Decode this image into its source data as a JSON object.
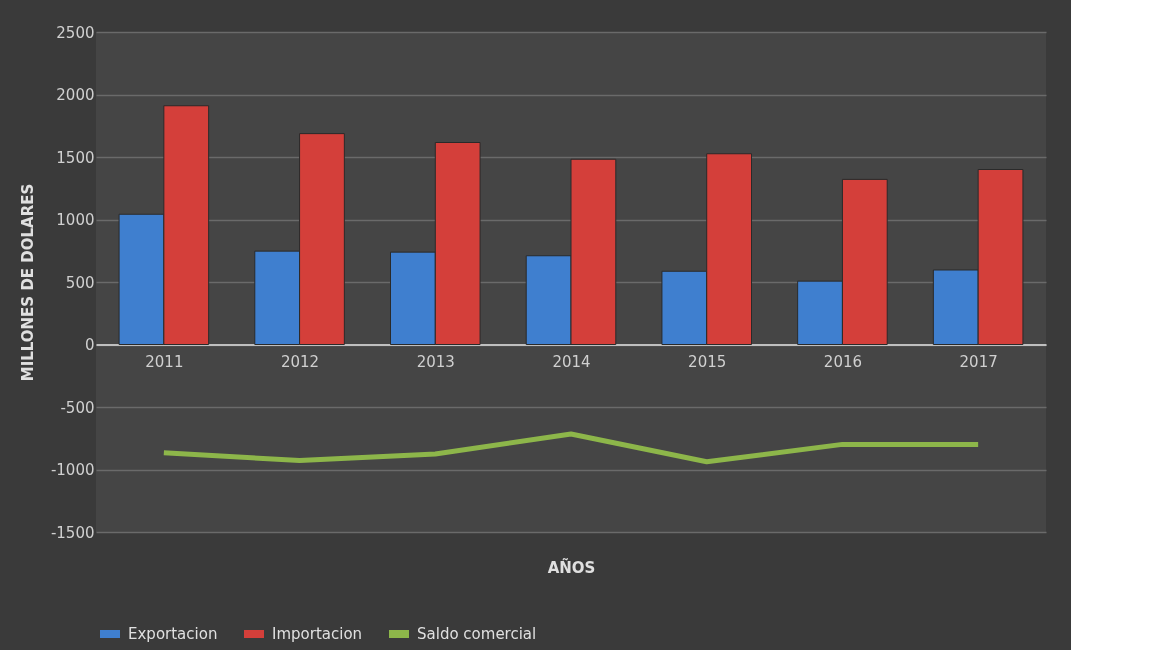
{
  "chart_data": {
    "type": "bar",
    "xlabel": "AÑOS",
    "ylabel": "MILLONES DE DOLARES",
    "categories": [
      "2011",
      "2012",
      "2013",
      "2014",
      "2015",
      "2016",
      "2017"
    ],
    "series": [
      {
        "name": "Exportacion",
        "color": "#3f7fcf",
        "values": [
          1042,
          747,
          739,
          710,
          586,
          507,
          596
        ]
      },
      {
        "name": "Importacion",
        "color": "#d43f3a",
        "values": [
          1910,
          1687,
          1616,
          1482,
          1526,
          1321,
          1400
        ]
      },
      {
        "name": "Saldo comercial",
        "type": "line",
        "color": "#8db64a",
        "values": [
          -866,
          -928,
          -876,
          -716,
          -938,
          -799,
          -799
        ]
      }
    ],
    "ylim": [
      -1500,
      2500
    ],
    "yticks": [
      -1500,
      -1000,
      -500,
      0,
      500,
      1000,
      1500,
      2000,
      2500
    ],
    "grid": "y",
    "legend": "bottom"
  }
}
